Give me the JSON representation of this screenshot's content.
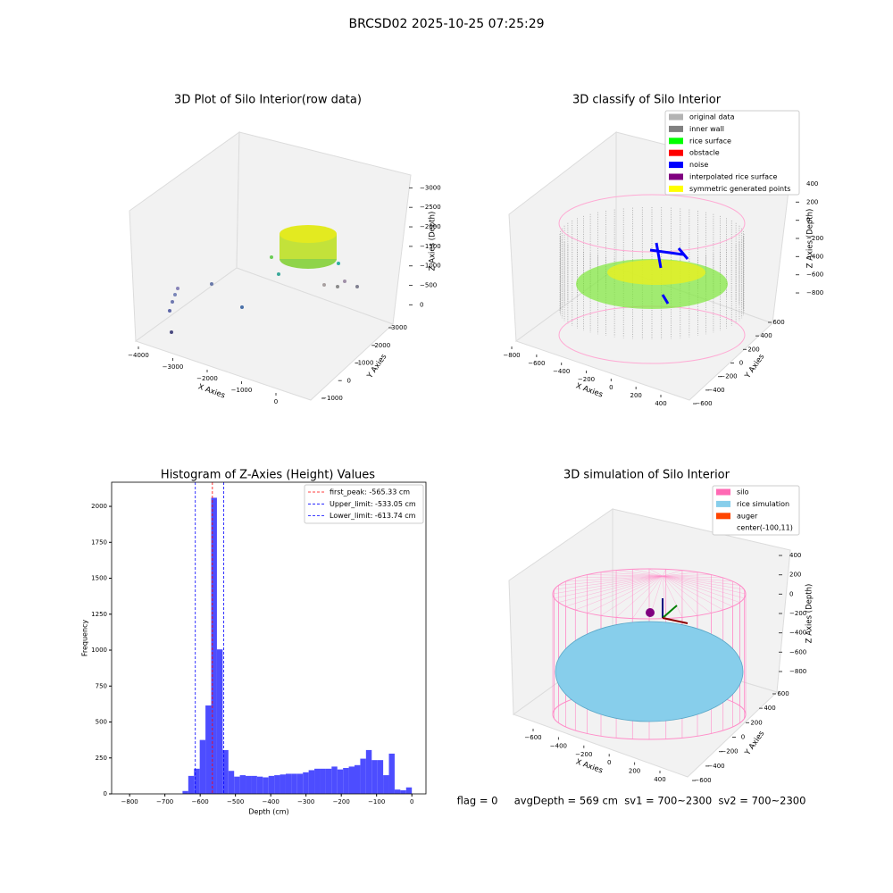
{
  "title": "BRCSD02 2025-10-25 07:25:29",
  "footer": "flag = 0     avgDepth = 569 cm  sv1 = 700~2300  sv2 = 700~2300",
  "chart_data": [
    {
      "type": "scatter3d",
      "title": "3D Plot of Silo Interior(row data)",
      "xlabel": "X Axies",
      "ylabel": "Y Axies",
      "zlabel": "Z Axies (Depth)",
      "xlim": [
        -4400,
        400
      ],
      "xticks": [
        {
          "value": -4000,
          "label": "−4000"
        },
        {
          "value": -3000,
          "label": "−3000"
        },
        {
          "value": -2000,
          "label": "−2000"
        },
        {
          "value": -1000,
          "label": "−1000"
        },
        0
      ],
      "ylim": [
        -1400,
        3400
      ],
      "yticks": [
        {
          "value": -1000,
          "label": "−1000"
        },
        0,
        1000,
        2000,
        3000
      ],
      "zlim": [
        -3300,
        200
      ],
      "zticks": [
        {
          "value": -3000,
          "label": "−3000"
        },
        {
          "value": -2500,
          "label": "−2500"
        },
        {
          "value": -2000,
          "label": "−2000"
        },
        {
          "value": -1500,
          "label": "−1500"
        },
        {
          "value": -1000,
          "label": "−1000"
        },
        {
          "value": -500,
          "label": "−500"
        },
        0
      ]
    },
    {
      "type": "scatter3d",
      "title": "3D classify of Silo Interior",
      "xlabel": "X Axies",
      "ylabel": "Y Axies",
      "zlabel": "Z Axies (Depth)",
      "xlim": [
        -880,
        520
      ],
      "xticks": [
        {
          "value": -800,
          "label": "−800"
        },
        {
          "value": -600,
          "label": "−600"
        },
        {
          "value": -400,
          "label": "−400"
        },
        {
          "value": -200,
          "label": "−200"
        },
        0,
        200,
        400
      ],
      "ylim": [
        -680,
        680
      ],
      "yticks": [
        {
          "value": -600,
          "label": "−600"
        },
        {
          "value": -400,
          "label": "−400"
        },
        {
          "value": -200,
          "label": "−200"
        },
        0,
        200,
        400,
        600
      ],
      "zlim": [
        -900,
        450
      ],
      "zticks": [
        {
          "value": -800,
          "label": "−800"
        },
        {
          "value": -600,
          "label": "−600"
        },
        {
          "value": -400,
          "label": "−400"
        },
        {
          "value": -200,
          "label": "−200"
        },
        0,
        200,
        400
      ],
      "legend": [
        {
          "name": "original data",
          "color": "#b3b3b3"
        },
        {
          "name": "inner wall",
          "color": "#808080"
        },
        {
          "name": "rice surface",
          "color": "#00ff00"
        },
        {
          "name": "obstacle",
          "color": "#ff0000"
        },
        {
          "name": "noise",
          "color": "#0000ff"
        },
        {
          "name": "interpolated rice surface",
          "color": "#800080"
        },
        {
          "name": "symmetric generated points",
          "color": "#ffff00"
        }
      ]
    },
    {
      "type": "histogram",
      "title": "Histogram of Z-Axies (Height) Values",
      "xlabel": "Depth (cm)",
      "ylabel": "Frequency",
      "color": "#4d4dff",
      "bins": [
        -650,
        -633.75,
        -617.5,
        -601.25,
        -585,
        -568.75,
        -552.5,
        -536.25,
        -520,
        -503.75,
        -487.5,
        -471.25,
        -455,
        -438.75,
        -422.5,
        -406.25,
        -390,
        -373.75,
        -357.5,
        -341.25,
        -325,
        -308.75,
        -292.5,
        -276.25,
        -260,
        -243.75,
        -227.5,
        -211.25,
        -195,
        -178.75,
        -162.5,
        -146.25,
        -130,
        -113.75,
        -97.5,
        -81.25,
        -65,
        -48.75,
        -32.5,
        -16.25,
        0
      ],
      "values": [
        20,
        125,
        175,
        375,
        615,
        2060,
        1005,
        305,
        160,
        120,
        130,
        125,
        125,
        120,
        115,
        125,
        130,
        135,
        140,
        140,
        140,
        150,
        165,
        175,
        175,
        175,
        190,
        170,
        180,
        190,
        200,
        245,
        305,
        235,
        235,
        130,
        280,
        30,
        25,
        45
      ],
      "xlim": [
        -851,
        40
      ],
      "xticks": [
        {
          "value": -800,
          "label": "−800"
        },
        {
          "value": -700,
          "label": "−700"
        },
        {
          "value": -600,
          "label": "−600"
        },
        {
          "value": -500,
          "label": "−500"
        },
        {
          "value": -400,
          "label": "−400"
        },
        {
          "value": -300,
          "label": "−300"
        },
        {
          "value": -200,
          "label": "−200"
        },
        {
          "value": -100,
          "label": "−100"
        },
        0
      ],
      "ylim": [
        0,
        2168
      ],
      "yticks": [
        0,
        250,
        500,
        750,
        1000,
        1250,
        1500,
        1750,
        2000
      ],
      "lines": [
        {
          "name": "first_peak: -565.33 cm",
          "value": -565.33,
          "color": "#ff0000"
        },
        {
          "name": "Upper_limit: -533.05 cm",
          "value": -533.05,
          "color": "#0000ff"
        },
        {
          "name": "Lower_limit: -613.74 cm",
          "value": -613.74,
          "color": "#0000ff"
        }
      ]
    },
    {
      "type": "surface3d",
      "title": "3D simulation of Silo Interior",
      "xlabel": "X Axies",
      "ylabel": "Y Axies",
      "zlabel": "Z Axies (Depth)",
      "xlim": [
        -760,
        560
      ],
      "xticks": [
        {
          "value": -600,
          "label": "−600"
        },
        {
          "value": -400,
          "label": "−400"
        },
        {
          "value": -200,
          "label": "−200"
        },
        0,
        200,
        400
      ],
      "ylim": [
        -680,
        680
      ],
      "yticks": [
        {
          "value": -600,
          "label": "−600"
        },
        {
          "value": -400,
          "label": "−400"
        },
        {
          "value": -200,
          "label": "−200"
        },
        0,
        200,
        400,
        600
      ],
      "zlim": [
        -900,
        500
      ],
      "zticks": [
        {
          "value": -800,
          "label": "−800"
        },
        {
          "value": -600,
          "label": "−600"
        },
        {
          "value": -400,
          "label": "−400"
        },
        {
          "value": -200,
          "label": "−200"
        },
        0,
        200,
        400
      ],
      "legend": [
        {
          "name": "silo",
          "color": "#ff69b4"
        },
        {
          "name": "rice simulation",
          "color": "#87ceeb"
        },
        {
          "name": "auger",
          "color": "#ff4500"
        },
        {
          "name": "center(-100,11)",
          "color": "#ffffff"
        }
      ]
    }
  ]
}
